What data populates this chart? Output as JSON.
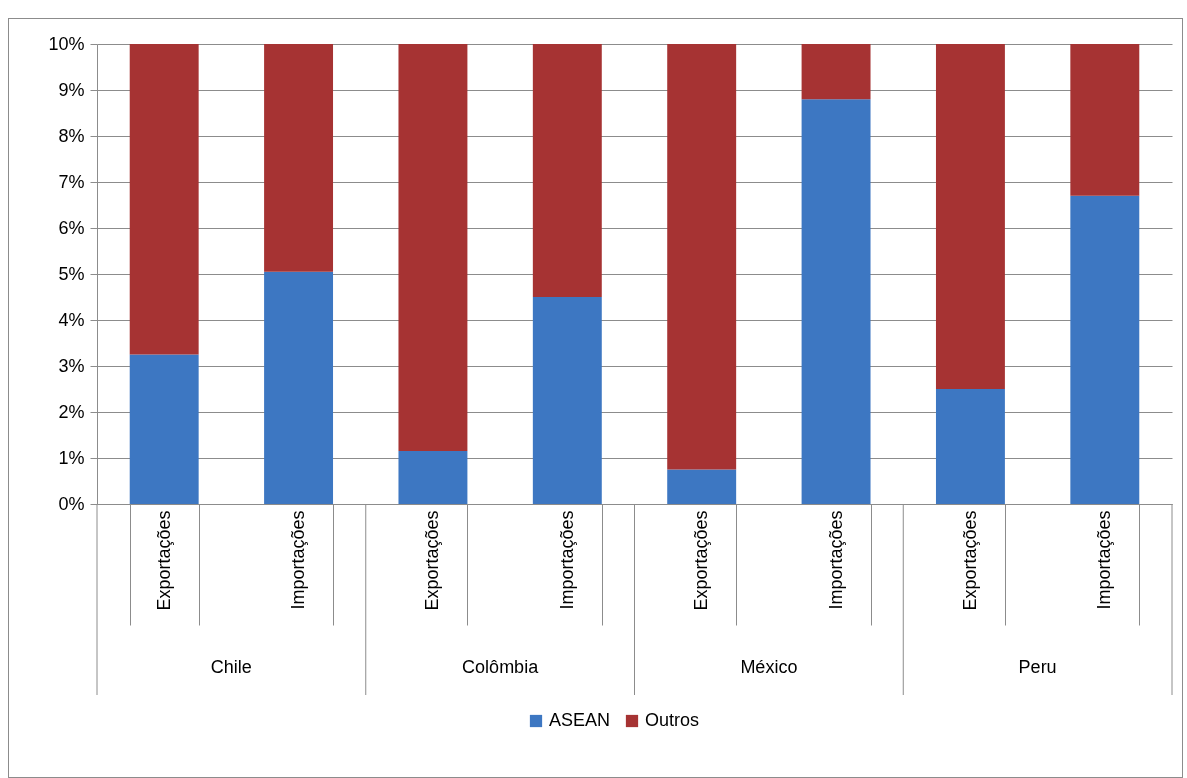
{
  "chart_data": {
    "type": "bar",
    "stacked": true,
    "categories": [
      "Exportações",
      "Importações",
      "Exportações",
      "Importações",
      "Exportações",
      "Importações",
      "Exportações",
      "Importações"
    ],
    "annotations": [
      "Chile",
      "Colômbia",
      "México",
      "Peru"
    ],
    "series": [
      {
        "name": "ASEAN",
        "color": "#3d77c2",
        "values": [
          3.25,
          5.05,
          1.15,
          4.5,
          0.75,
          8.8,
          2.5,
          6.7
        ]
      },
      {
        "name": "Outros",
        "color": "#a63333",
        "values": [
          6.75,
          4.95,
          8.85,
          5.5,
          9.25,
          1.2,
          7.5,
          3.3
        ]
      }
    ],
    "ylim": [
      0,
      10
    ],
    "yticks": [
      {
        "value": 0,
        "label": "0%"
      },
      {
        "value": 1,
        "label": "1%"
      },
      {
        "value": 2,
        "label": "2%"
      },
      {
        "value": 3,
        "label": "3%"
      },
      {
        "value": 4,
        "label": "4%"
      },
      {
        "value": 5,
        "label": "5%"
      },
      {
        "value": 6,
        "label": "6%"
      },
      {
        "value": 7,
        "label": "7%"
      },
      {
        "value": 8,
        "label": "8%"
      },
      {
        "value": 9,
        "label": "9%"
      },
      {
        "value": 10,
        "label": "10%"
      }
    ],
    "grid": "y",
    "legend": "bottom"
  }
}
